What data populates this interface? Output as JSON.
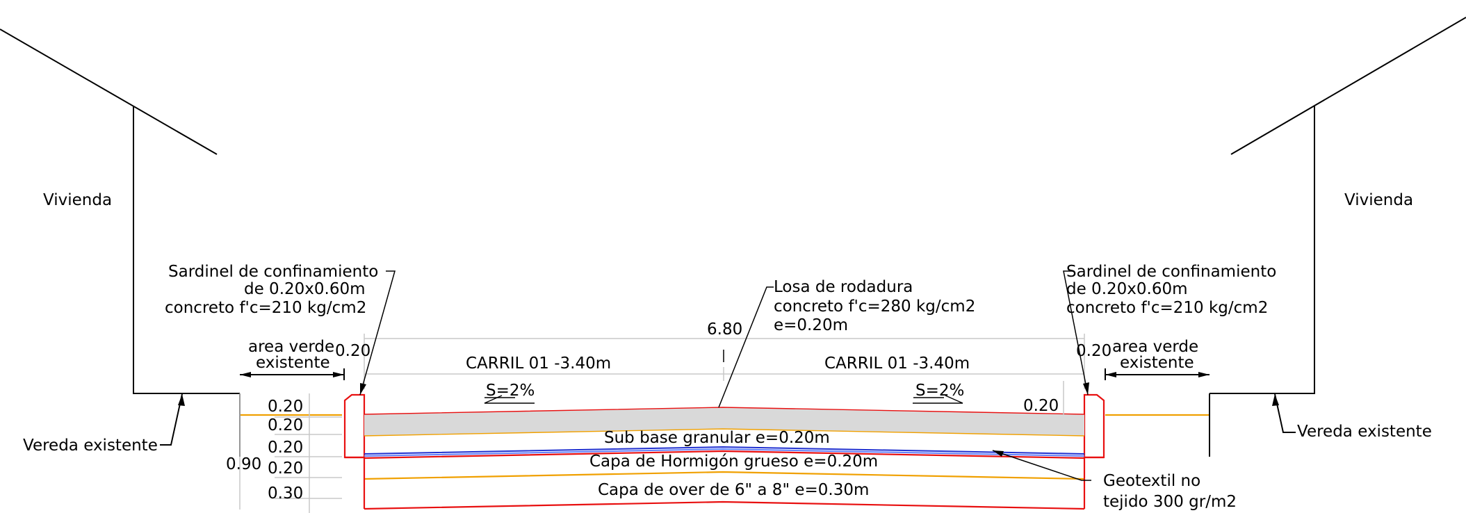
{
  "labels": {
    "vivienda_left": "Vivienda",
    "vivienda_right": "Vivienda",
    "vereda_left": "Vereda existente",
    "vereda_right": "Vereda existente",
    "sardinel_left": [
      "Sardinel de confinamiento",
      "de 0.20x0.60m",
      "concreto f'c=210 kg/cm2"
    ],
    "sardinel_right": [
      "Sardinel de confinamiento",
      "de 0.20x0.60m",
      "concreto f'c=210 kg/cm2"
    ],
    "losa": [
      "Losa de rodadura",
      "concreto f'c=280 kg/cm2",
      "e=0.20m"
    ],
    "area_verde_left": [
      "area verde",
      "existente"
    ],
    "area_verde_right": [
      "area verde",
      "existente"
    ],
    "carril_left": "CARRIL 01 -3.40m",
    "carril_right": "CARRIL 01 -3.40m",
    "slope_left": "S=2%",
    "slope_right": "S=2%",
    "sub_base": "Sub base granular e=0.20m",
    "hormigon": "Capa de Hormigón grueso e=0.20m",
    "over": "Capa de over de 6\" a 8\" e=0.30m",
    "geotextil": [
      "Geotextil no",
      "tejido 300 gr/m2"
    ]
  },
  "dimensions": {
    "total_width": "6.80",
    "curb_left": "0.20",
    "curb_right": "0.20",
    "layer_right": "0.20",
    "layers": [
      "0.20",
      "0.20",
      "0.20",
      "0.20",
      "0.30"
    ],
    "total_depth": "0.90"
  },
  "colors": {
    "line": "#000000",
    "curb": "#e81010",
    "layer_line": "#f0a000",
    "geotextile": "#2030d0",
    "slab_fill": "#d9d9d9",
    "dimension": "#888888"
  }
}
